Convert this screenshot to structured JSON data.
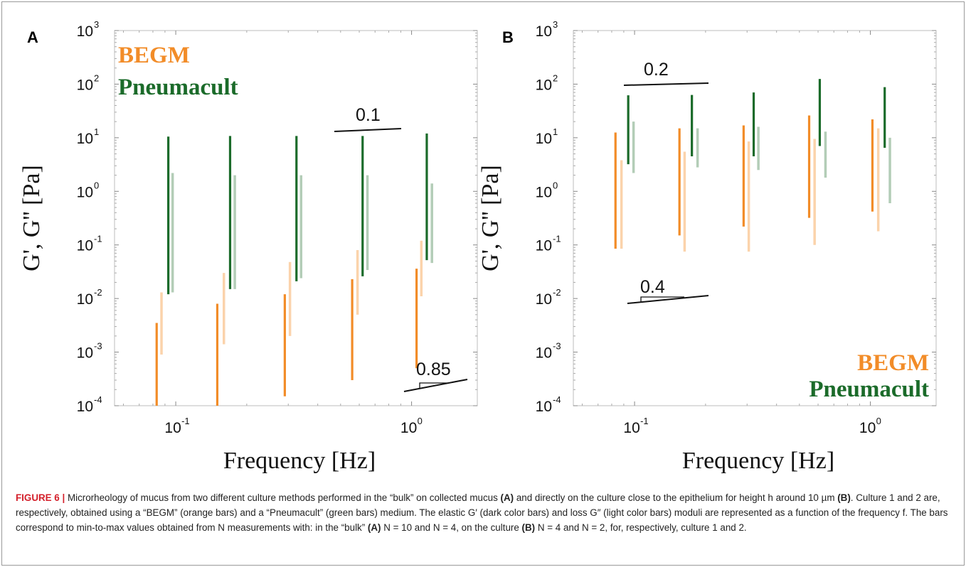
{
  "chart_data": [
    {
      "panel": "A",
      "type": "range-bar",
      "xlabel": "Frequency [Hz]",
      "ylabel": "G', G'' [Pa]",
      "x_scale": "log",
      "y_scale": "log",
      "xlim": [
        0.055,
        1.9
      ],
      "ylim": [
        0.0001,
        1000
      ],
      "x_ticks": [
        {
          "base": "10",
          "exp": "-1",
          "value": 0.1
        },
        {
          "base": "10",
          "exp": "0",
          "value": 1
        }
      ],
      "y_ticks": [
        {
          "base": "10",
          "exp": "3",
          "value": 1000
        },
        {
          "base": "10",
          "exp": "2",
          "value": 100
        },
        {
          "base": "10",
          "exp": "1",
          "value": 10
        },
        {
          "base": "10",
          "exp": "0",
          "value": 1
        },
        {
          "base": "10",
          "exp": "-1",
          "value": 0.1
        },
        {
          "base": "10",
          "exp": "-2",
          "value": 0.01
        },
        {
          "base": "10",
          "exp": "-3",
          "value": 0.001
        },
        {
          "base": "10",
          "exp": "-4",
          "value": 0.0001
        }
      ],
      "legend": {
        "position": "top-left",
        "entries": [
          {
            "label": "BEGM",
            "color": "#f28c28"
          },
          {
            "label": "Pneumacult",
            "color": "#1b6b2a"
          }
        ]
      },
      "series": [
        {
          "name": "BEGM",
          "modulus": "G'",
          "color": "#f28c28",
          "x": [
            0.083,
            0.15,
            0.29,
            0.56,
            1.05
          ],
          "min": [
            0.0001,
            0.0001,
            0.00015,
            0.0003,
            0.0005
          ],
          "max": [
            0.0035,
            0.008,
            0.012,
            0.023,
            0.036
          ]
        },
        {
          "name": "BEGM",
          "modulus": "G''",
          "color": "#fbd3ab",
          "x": [
            0.087,
            0.16,
            0.305,
            0.59,
            1.1
          ],
          "min": [
            0.0009,
            0.0014,
            0.002,
            0.005,
            0.011
          ],
          "max": [
            0.013,
            0.03,
            0.048,
            0.08,
            0.12
          ]
        },
        {
          "name": "Pneumacult",
          "modulus": "G'",
          "color": "#1b6b2a",
          "x": [
            0.093,
            0.17,
            0.325,
            0.62,
            1.16
          ],
          "min": [
            0.012,
            0.015,
            0.021,
            0.026,
            0.052
          ],
          "max": [
            10.5,
            10.8,
            10.8,
            10.8,
            12.0
          ]
        },
        {
          "name": "Pneumacult",
          "modulus": "G''",
          "color": "#b3cdb7",
          "x": [
            0.097,
            0.178,
            0.34,
            0.65,
            1.22
          ],
          "min": [
            0.013,
            0.015,
            0.024,
            0.034,
            0.046
          ],
          "max": [
            2.2,
            2.0,
            2.0,
            2.0,
            1.4
          ]
        }
      ],
      "slope_annotations": [
        {
          "label": "0.1"
        },
        {
          "label": "0.85"
        }
      ]
    },
    {
      "panel": "B",
      "type": "range-bar",
      "xlabel": "Frequency [Hz]",
      "ylabel": "G', G'' [Pa]",
      "x_scale": "log",
      "y_scale": "log",
      "xlim": [
        0.055,
        1.9
      ],
      "ylim": [
        0.0001,
        1000
      ],
      "x_ticks": [
        {
          "base": "10",
          "exp": "-1",
          "value": 0.1
        },
        {
          "base": "10",
          "exp": "0",
          "value": 1
        }
      ],
      "y_ticks": [
        {
          "base": "10",
          "exp": "3",
          "value": 1000
        },
        {
          "base": "10",
          "exp": "2",
          "value": 100
        },
        {
          "base": "10",
          "exp": "1",
          "value": 10
        },
        {
          "base": "10",
          "exp": "0",
          "value": 1
        },
        {
          "base": "10",
          "exp": "-1",
          "value": 0.1
        },
        {
          "base": "10",
          "exp": "-2",
          "value": 0.01
        },
        {
          "base": "10",
          "exp": "-3",
          "value": 0.001
        },
        {
          "base": "10",
          "exp": "-4",
          "value": 0.0001
        }
      ],
      "legend": {
        "position": "bottom-right",
        "entries": [
          {
            "label": "BEGM",
            "color": "#f28c28"
          },
          {
            "label": "Pneumacult",
            "color": "#1b6b2a"
          }
        ]
      },
      "series": [
        {
          "name": "BEGM",
          "modulus": "G'",
          "color": "#f28c28",
          "x": [
            0.083,
            0.155,
            0.29,
            0.55,
            1.02
          ],
          "min": [
            0.085,
            0.15,
            0.22,
            0.32,
            0.42
          ],
          "max": [
            12.5,
            15.0,
            17.0,
            26.0,
            22.0
          ]
        },
        {
          "name": "BEGM",
          "modulus": "G''",
          "color": "#fbd3ab",
          "x": [
            0.088,
            0.163,
            0.305,
            0.58,
            1.08
          ],
          "min": [
            0.085,
            0.075,
            0.075,
            0.1,
            0.18
          ],
          "max": [
            3.8,
            5.5,
            8.5,
            9.5,
            15.0
          ]
        },
        {
          "name": "Pneumacult",
          "modulus": "G'",
          "color": "#1b6b2a",
          "x": [
            0.094,
            0.175,
            0.32,
            0.61,
            1.15
          ],
          "min": [
            3.2,
            4.5,
            4.5,
            7.0,
            6.5
          ],
          "max": [
            62.0,
            63.0,
            70.0,
            125.0,
            88.0
          ]
        },
        {
          "name": "Pneumacult",
          "modulus": "G''",
          "color": "#b3cdb7",
          "x": [
            0.099,
            0.185,
            0.335,
            0.645,
            1.21
          ],
          "min": [
            2.2,
            2.8,
            2.5,
            1.8,
            0.6
          ],
          "max": [
            20.0,
            15.0,
            16.0,
            13.0,
            10.0
          ]
        }
      ],
      "slope_annotations": [
        {
          "label": "0.2"
        },
        {
          "label": "0.4"
        }
      ]
    }
  ],
  "caption": {
    "figure_label": "FIGURE 6 |",
    "text_1": " Microrheology of mucus from two different culture methods performed in the “bulk” on collected mucus ",
    "ref_a1": "(A)",
    "text_2": " and directly on the culture close to the epithelium for height h around 10 µm ",
    "ref_b1": "(B)",
    "text_3": ". Culture 1 and 2 are, respectively, obtained using a “BEGM” (orange bars) and a “Pneumacult” (green bars) medium. The elastic G′ (dark color bars) and loss G″ (light color bars) moduli are represented as a function of the frequency f. The bars correspond to min-to-max values obtained from N measurements with: in the “bulk” ",
    "ref_a2": "(A)",
    "text_4": " N = 10 and N = 4, on the culture ",
    "ref_b2": "(B)",
    "text_5": " N = 4 and N = 2, for, respectively, culture 1 and 2."
  }
}
